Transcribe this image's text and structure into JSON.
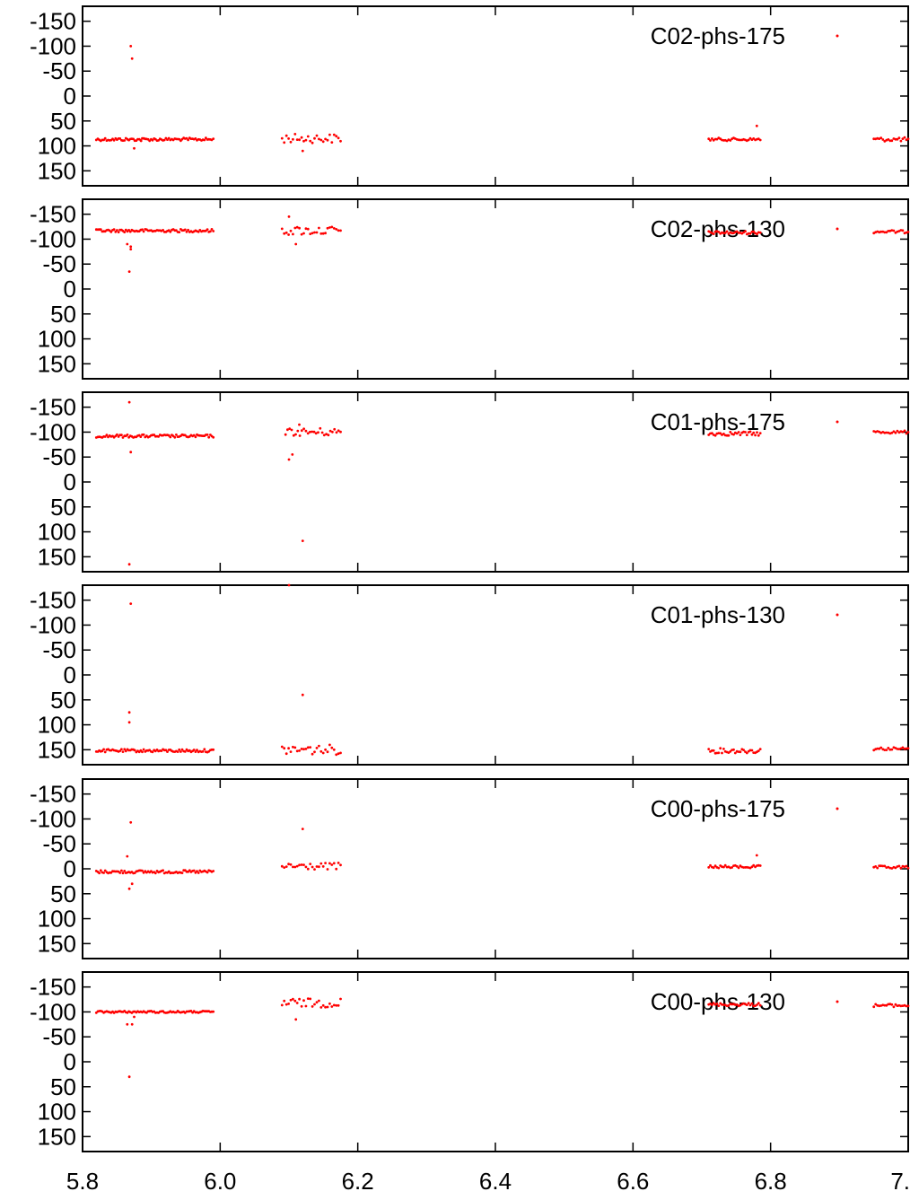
{
  "colors": {
    "series": "#ff0000",
    "axis": "#000000",
    "background": "#ffffff"
  },
  "chart_data": {
    "type": "scatter",
    "xlim": [
      5.8,
      7.0
    ],
    "ylim": [
      -180,
      180
    ],
    "y_inverted": true,
    "x_ticks": [
      5.8,
      6.0,
      6.2,
      6.4,
      6.6,
      6.8,
      7.0
    ],
    "x_tick_labels": [
      "5.8",
      "6.0",
      "6.2",
      "6.4",
      "6.6",
      "6.8",
      "7."
    ],
    "y_ticks": [
      -150,
      -100,
      -50,
      0,
      50,
      100,
      150
    ],
    "y_tick_labels": [
      "-150",
      "-100",
      "-50",
      "0",
      "50",
      "100",
      "150"
    ],
    "grid": false,
    "legend_position": "top-right",
    "panels": [
      {
        "name": "C02-phs-175",
        "outliers": [
          [
            5.87,
            -100
          ],
          [
            5.872,
            -75
          ],
          [
            5.875,
            105
          ],
          [
            5.885,
            90
          ],
          [
            6.12,
            110
          ],
          [
            6.78,
            60
          ]
        ],
        "segments": [
          {
            "x0": 5.82,
            "x1": 5.99,
            "y": 87,
            "n": 80,
            "jitter": 3
          },
          {
            "x0": 6.09,
            "x1": 6.175,
            "y": 85,
            "n": 28,
            "jitter": 9
          },
          {
            "x0": 6.71,
            "x1": 6.785,
            "y": 87,
            "n": 32,
            "jitter": 3
          },
          {
            "x0": 6.95,
            "x1": 7.0,
            "y": 87,
            "n": 20,
            "jitter": 4
          }
        ]
      },
      {
        "name": "C02-phs-130",
        "outliers": [
          [
            5.865,
            -90
          ],
          [
            5.868,
            -35
          ],
          [
            5.87,
            -80
          ],
          [
            5.87,
            -85
          ],
          [
            6.1,
            -145
          ],
          [
            6.11,
            -90
          ]
        ],
        "segments": [
          {
            "x0": 5.82,
            "x1": 5.99,
            "y": -117,
            "n": 80,
            "jitter": 3
          },
          {
            "x0": 6.09,
            "x1": 6.175,
            "y": -117,
            "n": 28,
            "jitter": 9
          },
          {
            "x0": 6.71,
            "x1": 6.785,
            "y": -113,
            "n": 32,
            "jitter": 3
          },
          {
            "x0": 6.95,
            "x1": 7.0,
            "y": -115,
            "n": 20,
            "jitter": 3
          }
        ]
      },
      {
        "name": "C01-phs-175",
        "outliers": [
          [
            5.868,
            -160
          ],
          [
            5.87,
            -60
          ],
          [
            5.868,
            165
          ],
          [
            6.1,
            -45
          ],
          [
            6.105,
            -55
          ],
          [
            6.12,
            118
          ],
          [
            6.115,
            -115
          ]
        ],
        "segments": [
          {
            "x0": 5.82,
            "x1": 5.99,
            "y": -92,
            "n": 80,
            "jitter": 3
          },
          {
            "x0": 6.095,
            "x1": 6.175,
            "y": -100,
            "n": 28,
            "jitter": 8
          },
          {
            "x0": 6.71,
            "x1": 6.785,
            "y": -97,
            "n": 32,
            "jitter": 4
          },
          {
            "x0": 6.95,
            "x1": 7.0,
            "y": -100,
            "n": 20,
            "jitter": 3
          }
        ]
      },
      {
        "name": "C01-phs-130",
        "outliers": [
          [
            5.87,
            -143
          ],
          [
            5.868,
            75
          ],
          [
            5.868,
            95
          ],
          [
            6.1,
            -180
          ],
          [
            6.12,
            40
          ]
        ],
        "segments": [
          {
            "x0": 5.82,
            "x1": 5.99,
            "y": 152,
            "n": 80,
            "jitter": 3
          },
          {
            "x0": 6.09,
            "x1": 6.175,
            "y": 150,
            "n": 28,
            "jitter": 10
          },
          {
            "x0": 6.71,
            "x1": 6.785,
            "y": 152,
            "n": 32,
            "jitter": 5
          },
          {
            "x0": 6.95,
            "x1": 7.0,
            "y": 148,
            "n": 20,
            "jitter": 3
          }
        ]
      },
      {
        "name": "C00-phs-175",
        "outliers": [
          [
            5.87,
            -93
          ],
          [
            5.865,
            -25
          ],
          [
            5.868,
            40
          ],
          [
            5.872,
            30
          ],
          [
            6.12,
            -80
          ],
          [
            6.78,
            -27
          ]
        ],
        "segments": [
          {
            "x0": 5.82,
            "x1": 5.99,
            "y": 6,
            "n": 80,
            "jitter": 3
          },
          {
            "x0": 6.09,
            "x1": 6.175,
            "y": -5,
            "n": 28,
            "jitter": 7
          },
          {
            "x0": 6.71,
            "x1": 6.785,
            "y": -4,
            "n": 32,
            "jitter": 3
          },
          {
            "x0": 6.95,
            "x1": 7.0,
            "y": -3,
            "n": 20,
            "jitter": 3
          }
        ]
      },
      {
        "name": "C00-phs-130",
        "outliers": [
          [
            5.868,
            30
          ],
          [
            5.865,
            -75
          ],
          [
            5.872,
            -75
          ],
          [
            5.875,
            -90
          ],
          [
            6.11,
            -85
          ]
        ],
        "segments": [
          {
            "x0": 5.82,
            "x1": 5.99,
            "y": -100,
            "n": 80,
            "jitter": 2
          },
          {
            "x0": 6.09,
            "x1": 6.175,
            "y": -118,
            "n": 28,
            "jitter": 9
          },
          {
            "x0": 6.71,
            "x1": 6.785,
            "y": -115,
            "n": 32,
            "jitter": 3
          },
          {
            "x0": 6.95,
            "x1": 7.0,
            "y": -113,
            "n": 20,
            "jitter": 3
          }
        ]
      }
    ]
  }
}
